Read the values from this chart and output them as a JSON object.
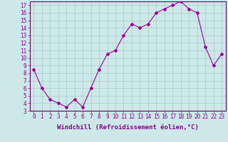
{
  "x": [
    0,
    1,
    2,
    3,
    4,
    5,
    6,
    7,
    8,
    9,
    10,
    11,
    12,
    13,
    14,
    15,
    16,
    17,
    18,
    19,
    20,
    21,
    22,
    23
  ],
  "y": [
    8.5,
    6.0,
    4.5,
    4.0,
    3.5,
    4.5,
    3.5,
    6.0,
    8.5,
    10.5,
    11.0,
    13.0,
    14.5,
    14.0,
    14.5,
    16.0,
    16.5,
    17.0,
    17.5,
    16.5,
    16.0,
    11.5,
    9.0,
    10.5
  ],
  "line_color": "#990099",
  "marker": "D",
  "marker_size": 2,
  "bg_color": "#cce8e8",
  "grid_color": "#aacccc",
  "xlabel": "Windchill (Refroidissement éolien,°C)",
  "ylim": [
    3,
    17.5
  ],
  "xlim": [
    -0.5,
    23.5
  ],
  "yticks": [
    3,
    4,
    5,
    6,
    7,
    8,
    9,
    10,
    11,
    12,
    13,
    14,
    15,
    16,
    17
  ],
  "xticks": [
    0,
    1,
    2,
    3,
    4,
    5,
    6,
    7,
    8,
    9,
    10,
    11,
    12,
    13,
    14,
    15,
    16,
    17,
    18,
    19,
    20,
    21,
    22,
    23
  ],
  "tick_fontsize": 5.5,
  "xlabel_fontsize": 6.5,
  "spine_color": "#660066",
  "text_color": "#880088"
}
